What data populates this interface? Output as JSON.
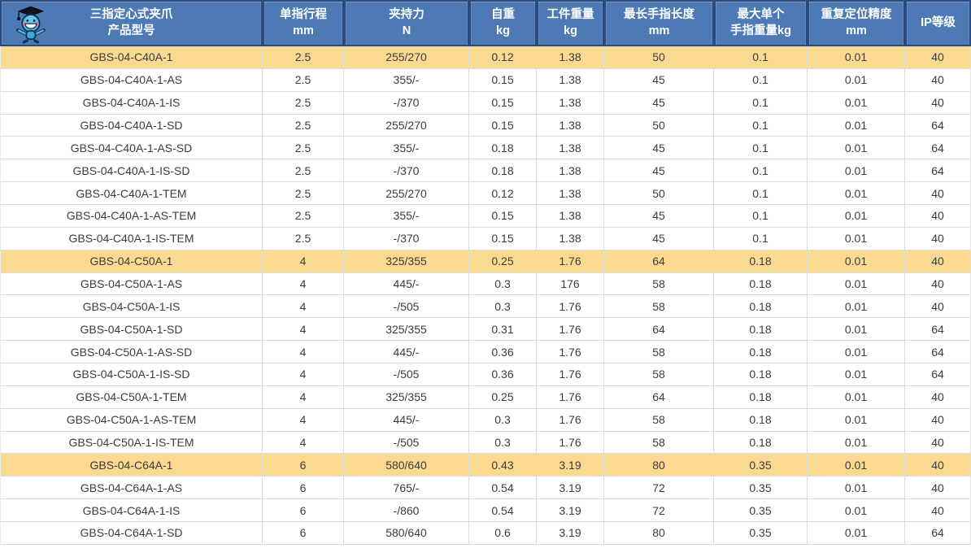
{
  "colors": {
    "header_bg": "#4d79b4",
    "header_border": "#2b4b7d",
    "header_text": "#ffffff",
    "highlight_row_bg": "#fbd990",
    "body_row_bg": "#ffffff",
    "grid_line": "#dcdcdc",
    "body_text": "#3c3c3c"
  },
  "icons": {
    "mascot": "graduate-mascot-icon"
  },
  "table": {
    "headers": [
      {
        "line1": "三指定心式夹爪",
        "line2": "产品型号"
      },
      {
        "line1": "单指行程",
        "line2": "mm"
      },
      {
        "line1": "夹持力",
        "line2": "N"
      },
      {
        "line1": "自重",
        "line2": "kg"
      },
      {
        "line1": "工件重量",
        "line2": "kg"
      },
      {
        "line1": "最长手指长度",
        "line2": "mm"
      },
      {
        "line1": "最大单个",
        "line2": "手指重量kg"
      },
      {
        "line1": "重复定位精度",
        "line2": "mm"
      },
      {
        "line1": "IP等级",
        "line2": ""
      }
    ],
    "rows": [
      {
        "highlight": true,
        "cells": [
          "GBS-04-C40A-1",
          "2.5",
          "255/270",
          "0.12",
          "1.38",
          "50",
          "0.1",
          "0.01",
          "40"
        ]
      },
      {
        "highlight": false,
        "cells": [
          "GBS-04-C40A-1-AS",
          "2.5",
          "355/-",
          "0.15",
          "1.38",
          "45",
          "0.1",
          "0.01",
          "40"
        ]
      },
      {
        "highlight": false,
        "cells": [
          "GBS-04-C40A-1-IS",
          "2.5",
          "-/370",
          "0.15",
          "1.38",
          "45",
          "0.1",
          "0.01",
          "40"
        ]
      },
      {
        "highlight": false,
        "cells": [
          "GBS-04-C40A-1-SD",
          "2.5",
          "255/270",
          "0.15",
          "1.38",
          "50",
          "0.1",
          "0.01",
          "64"
        ]
      },
      {
        "highlight": false,
        "cells": [
          "GBS-04-C40A-1-AS-SD",
          "2.5",
          "355/-",
          "0.18",
          "1.38",
          "45",
          "0.1",
          "0.01",
          "64"
        ]
      },
      {
        "highlight": false,
        "cells": [
          "GBS-04-C40A-1-IS-SD",
          "2.5",
          "-/370",
          "0.18",
          "1.38",
          "45",
          "0.1",
          "0.01",
          "64"
        ]
      },
      {
        "highlight": false,
        "cells": [
          "GBS-04-C40A-1-TEM",
          "2.5",
          "255/270",
          "0.12",
          "1.38",
          "50",
          "0.1",
          "0.01",
          "40"
        ]
      },
      {
        "highlight": false,
        "cells": [
          "GBS-04-C40A-1-AS-TEM",
          "2.5",
          "355/-",
          "0.15",
          "1.38",
          "45",
          "0.1",
          "0.01",
          "40"
        ]
      },
      {
        "highlight": false,
        "cells": [
          "GBS-04-C40A-1-IS-TEM",
          "2.5",
          "-/370",
          "0.15",
          "1.38",
          "45",
          "0.1",
          "0.01",
          "40"
        ]
      },
      {
        "highlight": true,
        "cells": [
          "GBS-04-C50A-1",
          "4",
          "325/355",
          "0.25",
          "1.76",
          "64",
          "0.18",
          "0.01",
          "40"
        ]
      },
      {
        "highlight": false,
        "cells": [
          "GBS-04-C50A-1-AS",
          "4",
          "445/-",
          "0.3",
          "176",
          "58",
          "0.18",
          "0.01",
          "40"
        ]
      },
      {
        "highlight": false,
        "cells": [
          "GBS-04-C50A-1-IS",
          "4",
          "-/505",
          "0.3",
          "1.76",
          "58",
          "0.18",
          "0.01",
          "40"
        ]
      },
      {
        "highlight": false,
        "cells": [
          "GBS-04-C50A-1-SD",
          "4",
          "325/355",
          "0.31",
          "1.76",
          "64",
          "0.18",
          "0.01",
          "64"
        ]
      },
      {
        "highlight": false,
        "cells": [
          "GBS-04-C50A-1-AS-SD",
          "4",
          "445/-",
          "0.36",
          "1.76",
          "58",
          "0.18",
          "0.01",
          "64"
        ]
      },
      {
        "highlight": false,
        "cells": [
          "GBS-04-C50A-1-IS-SD",
          "4",
          "-/505",
          "0.36",
          "1.76",
          "58",
          "0.18",
          "0.01",
          "64"
        ]
      },
      {
        "highlight": false,
        "cells": [
          "GBS-04-C50A-1-TEM",
          "4",
          "325/355",
          "0.25",
          "1.76",
          "64",
          "0.18",
          "0.01",
          "40"
        ]
      },
      {
        "highlight": false,
        "cells": [
          "GBS-04-C50A-1-AS-TEM",
          "4",
          "445/-",
          "0.3",
          "1.76",
          "58",
          "0.18",
          "0.01",
          "40"
        ]
      },
      {
        "highlight": false,
        "cells": [
          "GBS-04-C50A-1-IS-TEM",
          "4",
          "-/505",
          "0.3",
          "1.76",
          "58",
          "0.18",
          "0.01",
          "40"
        ]
      },
      {
        "highlight": true,
        "cells": [
          "GBS-04-C64A-1",
          "6",
          "580/640",
          "0.43",
          "3.19",
          "80",
          "0.35",
          "0.01",
          "40"
        ]
      },
      {
        "highlight": false,
        "cells": [
          "GBS-04-C64A-1-AS",
          "6",
          "765/-",
          "0.54",
          "3.19",
          "72",
          "0.35",
          "0.01",
          "40"
        ]
      },
      {
        "highlight": false,
        "cells": [
          "GBS-04-C64A-1-IS",
          "6",
          "-/860",
          "0.54",
          "3.19",
          "72",
          "0.35",
          "0.01",
          "40"
        ]
      },
      {
        "highlight": false,
        "cells": [
          "GBS-04-C64A-1-SD",
          "6",
          "580/640",
          "0.6",
          "3.19",
          "80",
          "0.35",
          "0.01",
          "64"
        ]
      }
    ]
  }
}
